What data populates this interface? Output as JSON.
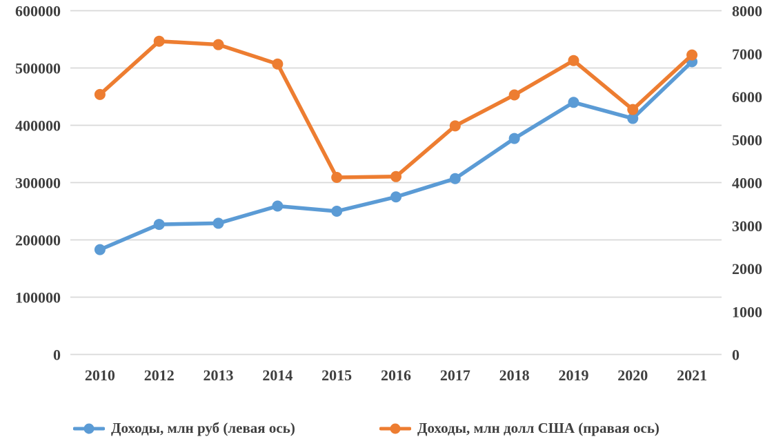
{
  "chart_data": {
    "type": "line",
    "categories": [
      "2010",
      "2012",
      "2013",
      "2014",
      "2015",
      "2016",
      "2017",
      "2018",
      "2019",
      "2020",
      "2021"
    ],
    "series": [
      {
        "name": "Доходы, млн руб (левая ось)",
        "axis": "left",
        "color": "#5B9BD5",
        "values": [
          183000,
          227000,
          229000,
          259000,
          250000,
          275000,
          307000,
          377000,
          440000,
          412000,
          511000
        ]
      },
      {
        "name": "Доходы, млн долл США (правая ось)",
        "axis": "right",
        "color": "#ED7D31",
        "values": [
          6050,
          7290,
          7210,
          6760,
          4120,
          4140,
          5320,
          6040,
          6840,
          5700,
          6970
        ]
      }
    ],
    "left_axis": {
      "min": 0,
      "max": 600000,
      "step": 100000,
      "tick_labels": [
        "0",
        "100000",
        "200000",
        "300000",
        "400000",
        "500000",
        "600000"
      ]
    },
    "right_axis": {
      "min": 0,
      "max": 8000,
      "step": 1000,
      "tick_labels": [
        "0",
        "1000",
        "2000",
        "3000",
        "4000",
        "5000",
        "6000",
        "7000",
        "8000"
      ]
    },
    "title": "",
    "xlabel": "",
    "ylabel": "",
    "grid": true,
    "legend_position": "bottom",
    "colors": {
      "grid": "#D9D9D9",
      "tick_text": "#404040",
      "background": "#FFFFFF"
    }
  }
}
